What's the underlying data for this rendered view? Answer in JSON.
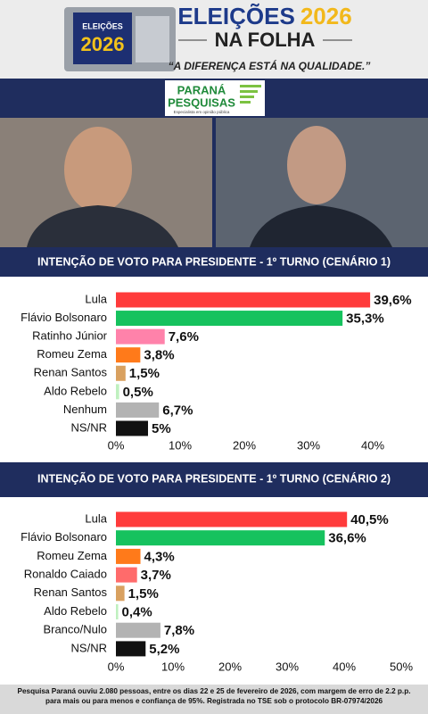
{
  "header": {
    "logo_word": "ELEIÇÕES",
    "logo_year": "2026",
    "title_word": "ELEIÇÕES",
    "title_year": "2026",
    "subtitle": "NA FOLHA",
    "slogan": "“A DIFERENÇA ESTÁ NA QUALIDADE.”"
  },
  "sponsor": {
    "name_line1": "PARANÁ",
    "name_line2": "PESQUISAS",
    "tagline": "Especialista em opinião pública"
  },
  "chart_data": [
    {
      "type": "bar",
      "title": "INTENÇÃO DE VOTO PARA PRESIDENTE - 1º TURNO (CENÁRIO 1)",
      "categories": [
        "Lula",
        "Flávio Bolsonaro",
        "Ratinho Júnior",
        "Romeu Zema",
        "Renan Santos",
        "Aldo Rebelo",
        "Nenhum",
        "NS/NR"
      ],
      "values": [
        39.6,
        35.3,
        7.6,
        3.8,
        1.5,
        0.5,
        6.7,
        5
      ],
      "value_labels": [
        "39,6%",
        "35,3%",
        "7,6%",
        "3,8%",
        "1,5%",
        "0,5%",
        "6,7%",
        "5%"
      ],
      "colors": [
        "#ff3b3b",
        "#16c25e",
        "#ff82aa",
        "#ff7a1a",
        "#d9a160",
        "#bff0bf",
        "#b3b3b3",
        "#111111"
      ],
      "xlim": [
        0,
        40
      ],
      "xticks": [
        {
          "value": 0,
          "label": "0%"
        },
        {
          "value": 10,
          "label": "10%"
        },
        {
          "value": 20,
          "label": "20%"
        },
        {
          "value": 30,
          "label": "30%"
        },
        {
          "value": 40,
          "label": "40%"
        }
      ]
    },
    {
      "type": "bar",
      "title": "INTENÇÃO DE VOTO PARA PRESIDENTE - 1º TURNO (CENÁRIO 2)",
      "categories": [
        "Lula",
        "Flávio Bolsonaro",
        "Romeu Zema",
        "Ronaldo Caiado",
        "Renan Santos",
        "Aldo Rebelo",
        "Branco/Nulo",
        "NS/NR"
      ],
      "values": [
        40.5,
        36.6,
        4.3,
        3.7,
        1.5,
        0.4,
        7.8,
        5.2
      ],
      "value_labels": [
        "40,5%",
        "36,6%",
        "4,3%",
        "3,7%",
        "1,5%",
        "0,4%",
        "7,8%",
        "5,2%"
      ],
      "colors": [
        "#ff3b3b",
        "#16c25e",
        "#ff7a1a",
        "#ff6b6b",
        "#d9a160",
        "#bff0bf",
        "#b3b3b3",
        "#111111"
      ],
      "xlim": [
        0,
        50
      ],
      "xticks": [
        {
          "value": 0,
          "label": "0%"
        },
        {
          "value": 10,
          "label": "10%"
        },
        {
          "value": 20,
          "label": "20%"
        },
        {
          "value": 30,
          "label": "30%"
        },
        {
          "value": 40,
          "label": "40%"
        },
        {
          "value": 50,
          "label": "50%"
        }
      ]
    }
  ],
  "footer": {
    "text": "Pesquisa Paraná ouviu 2.080 pessoas, entre os dias 22 e 25 de fevereiro de 2026, com margem de erro de 2.2 p.p. para mais ou para menos e confiança de 95%. Registrada no TSE sob o protocolo BR-07974/2026"
  }
}
